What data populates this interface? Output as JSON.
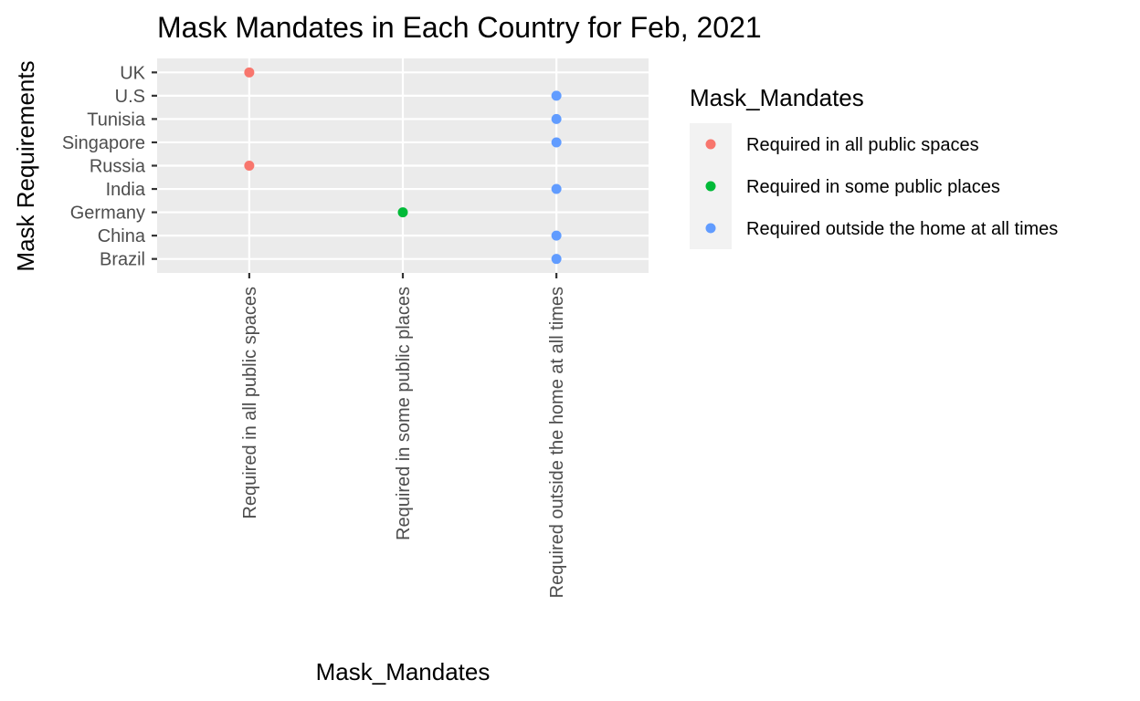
{
  "chart_data": {
    "type": "scatter",
    "title": "Mask Mandates in Each Country for Feb, 2021",
    "xlabel": "Mask_Mandates",
    "ylabel": "Mask Requirements",
    "x_categories": [
      "Required in all public spaces",
      "Required in some public places",
      "Required outside the home at all times"
    ],
    "y_categories": [
      "Brazil",
      "China",
      "Germany",
      "India",
      "Russia",
      "Singapore",
      "Tunisia",
      "U.S",
      "UK"
    ],
    "points": [
      {
        "country": "UK",
        "mandate": "Required in all public spaces"
      },
      {
        "country": "U.S",
        "mandate": "Required outside the home at all times"
      },
      {
        "country": "Tunisia",
        "mandate": "Required outside the home at all times"
      },
      {
        "country": "Singapore",
        "mandate": "Required outside the home at all times"
      },
      {
        "country": "Russia",
        "mandate": "Required in all public spaces"
      },
      {
        "country": "India",
        "mandate": "Required outside the home at all times"
      },
      {
        "country": "Germany",
        "mandate": "Required in some public places"
      },
      {
        "country": "China",
        "mandate": "Required outside the home at all times"
      },
      {
        "country": "Brazil",
        "mandate": "Required outside the home at all times"
      }
    ],
    "legend": {
      "title": "Mask_Mandates",
      "position": "right",
      "entries": [
        {
          "label": "Required in all public spaces",
          "color": "#F8766D"
        },
        {
          "label": "Required in some public places",
          "color": "#00BA38"
        },
        {
          "label": "Required outside the home at all times",
          "color": "#619CFF"
        }
      ]
    },
    "grid": true,
    "panel_background": "#EBEBEB"
  }
}
